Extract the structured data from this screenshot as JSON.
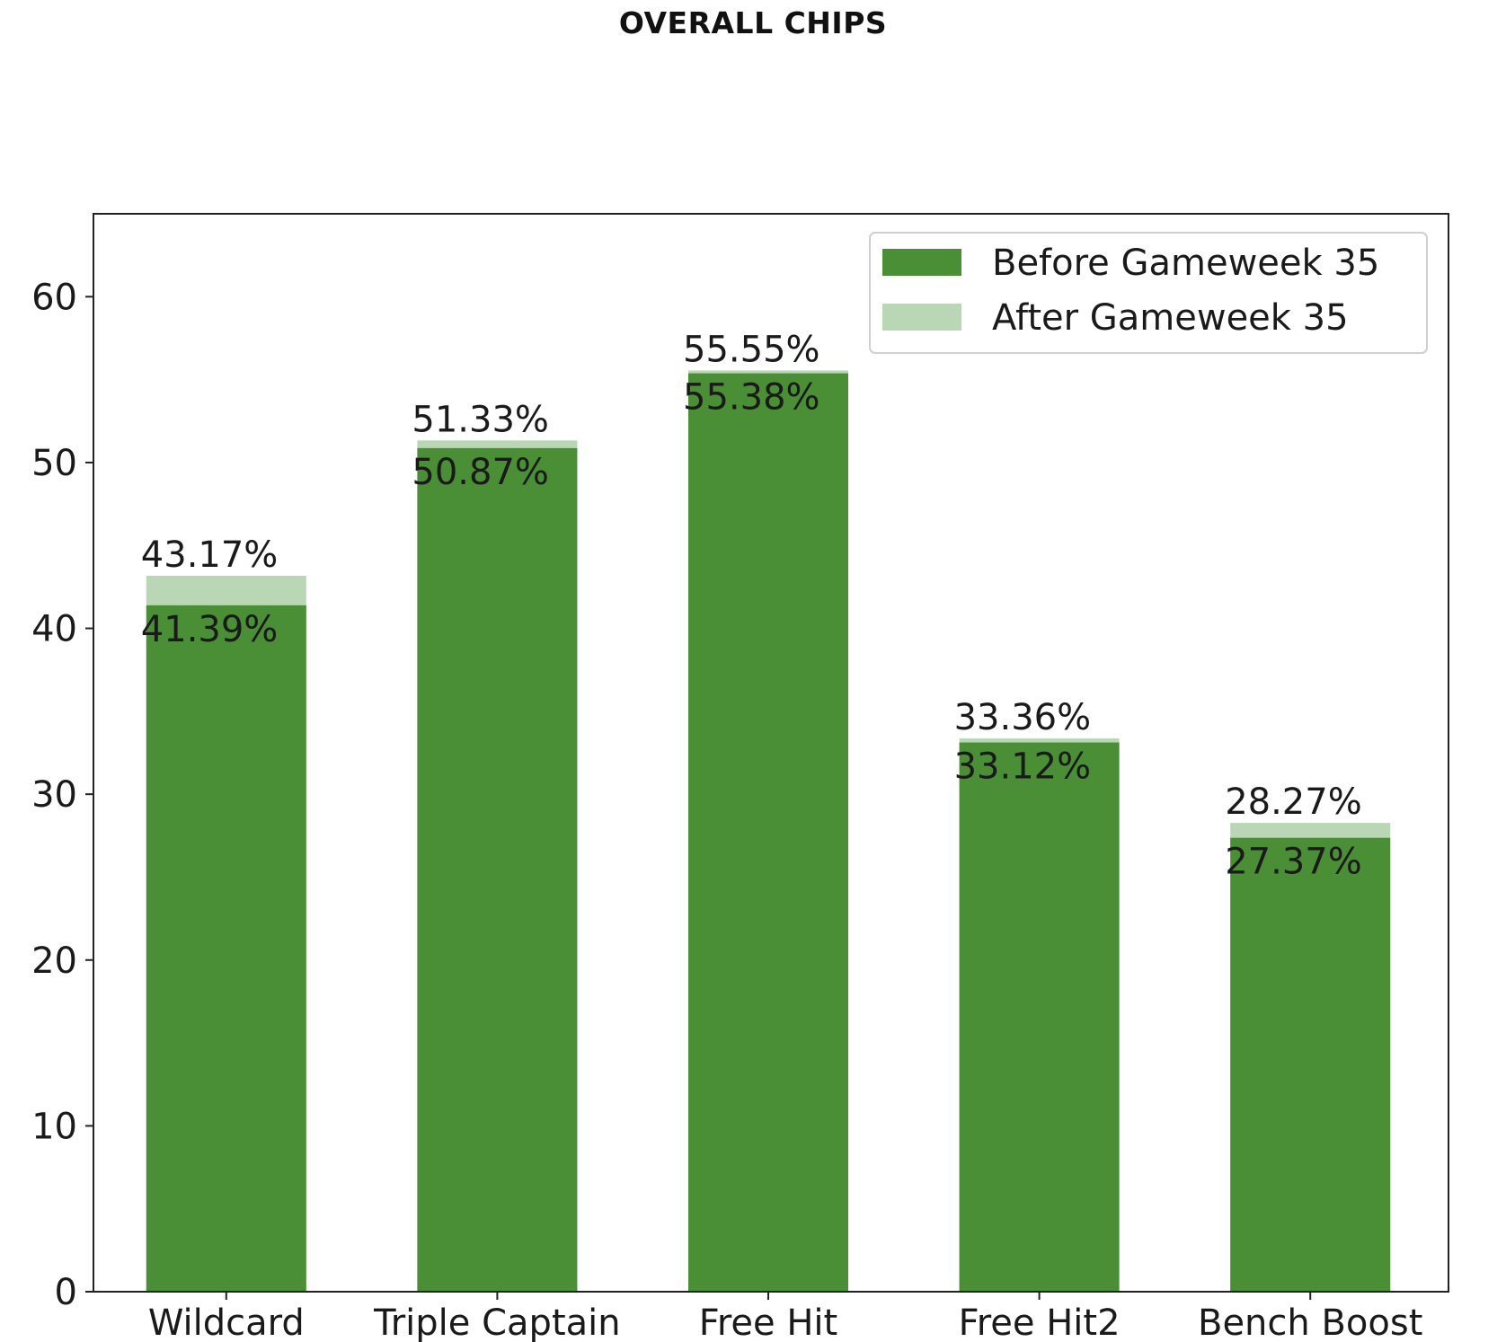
{
  "page": {
    "title": "OVERALL CHIPS"
  },
  "chart_data": {
    "type": "bar",
    "categories": [
      "Wildcard",
      "Triple Captain",
      "Free Hit",
      "Free Hit2",
      "Bench Boost"
    ],
    "series": [
      {
        "name": "Before Gameweek 35",
        "values": [
          41.39,
          50.87,
          55.38,
          33.12,
          27.37
        ],
        "color": "#4a8f36",
        "labels": [
          "41.39%",
          "50.87%",
          "55.38%",
          "33.12%",
          "27.37%"
        ]
      },
      {
        "name": "After Gameweek 35",
        "values": [
          43.17,
          51.33,
          55.55,
          33.36,
          28.27
        ],
        "color": "#b9d6b5",
        "labels": [
          "43.17%",
          "51.33%",
          "55.55%",
          "33.36%",
          "28.27%"
        ]
      }
    ],
    "ylim": [
      0,
      65
    ],
    "yticks": [
      0,
      10,
      20,
      30,
      40,
      50,
      60
    ],
    "legend": "top-right",
    "grid": false
  }
}
